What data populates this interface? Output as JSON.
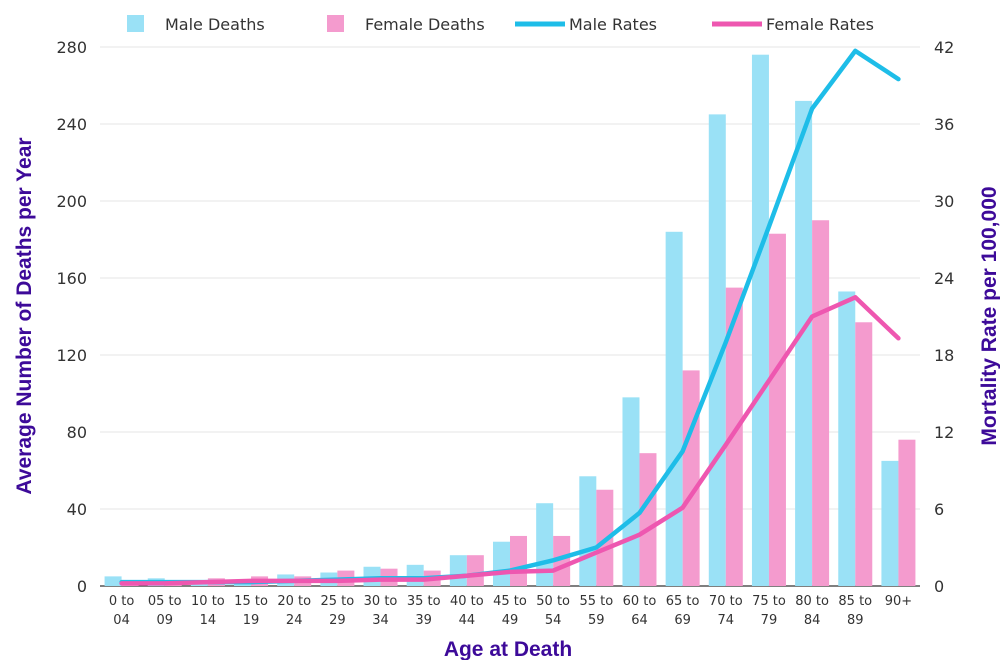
{
  "chart_data": {
    "type": "bar",
    "categories": [
      [
        "0 to",
        "04"
      ],
      [
        "05 to",
        "09"
      ],
      [
        "10 to",
        "14"
      ],
      [
        "15 to",
        "19"
      ],
      [
        "20 to",
        "24"
      ],
      [
        "25 to",
        "29"
      ],
      [
        "30 to",
        "34"
      ],
      [
        "35 to",
        "39"
      ],
      [
        "40 to",
        "44"
      ],
      [
        "45 to",
        "49"
      ],
      [
        "50 to",
        "54"
      ],
      [
        "55 to",
        "59"
      ],
      [
        "60 to",
        "64"
      ],
      [
        "65 to",
        "69"
      ],
      [
        "70 to",
        "74"
      ],
      [
        "75 to",
        "79"
      ],
      [
        "80 to",
        "84"
      ],
      [
        "85 to",
        "89"
      ],
      [
        "90+",
        ""
      ]
    ],
    "bar_series": [
      {
        "name": "Male Deaths",
        "color": "#9ae1f6",
        "values": [
          5,
          4,
          3,
          3,
          6,
          7,
          10,
          11,
          16,
          23,
          43,
          57,
          98,
          184,
          245,
          276,
          252,
          153,
          65
        ]
      },
      {
        "name": "Female Deaths",
        "color": "#f49bce",
        "values": [
          2,
          2,
          4,
          5,
          5,
          8,
          9,
          8,
          16,
          26,
          26,
          50,
          69,
          112,
          155,
          183,
          190,
          137,
          76
        ]
      }
    ],
    "line_series": [
      {
        "name": "Male Rates",
        "color": "#1ebde8",
        "values": [
          0.3,
          0.3,
          0.3,
          0.3,
          0.4,
          0.5,
          0.6,
          0.6,
          0.8,
          1.2,
          2.0,
          3.0,
          5.7,
          10.5,
          19.0,
          28.0,
          37.2,
          41.7,
          39.5
        ]
      },
      {
        "name": "Female Rates",
        "color": "#ee57b0",
        "values": [
          0.2,
          0.2,
          0.3,
          0.4,
          0.4,
          0.4,
          0.5,
          0.5,
          0.8,
          1.1,
          1.2,
          2.6,
          4.0,
          6.1,
          11.0,
          16.0,
          21.0,
          22.5,
          19.3
        ]
      }
    ],
    "xlabel": "Age at Death",
    "ylabel_left": "Average Number of Deaths per Year",
    "ylabel_right": "Mortality Rate per 100,000",
    "ylim_left": [
      0,
      280
    ],
    "yticks_left": [
      0,
      40,
      80,
      120,
      160,
      200,
      240,
      280
    ],
    "ylim_right": [
      0,
      42
    ],
    "yticks_right": [
      0,
      6,
      12,
      18,
      24,
      30,
      36,
      42
    ],
    "grid": true,
    "legend_position": "top",
    "axis_title_color": "#3d0a99"
  }
}
